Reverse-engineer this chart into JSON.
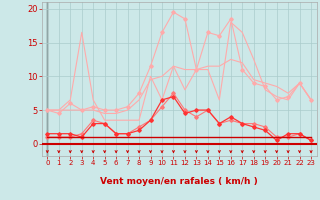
{
  "x": [
    0,
    1,
    2,
    3,
    4,
    5,
    6,
    7,
    8,
    9,
    10,
    11,
    12,
    13,
    14,
    15,
    16,
    17,
    18,
    19,
    20,
    21,
    22,
    23
  ],
  "line_rafales_max": [
    5.0,
    5.0,
    6.5,
    16.5,
    6.5,
    3.5,
    3.5,
    3.5,
    3.5,
    10.0,
    6.5,
    11.5,
    8.0,
    11.0,
    11.0,
    6.5,
    18.0,
    16.5,
    12.5,
    8.0,
    7.0,
    6.5,
    9.0,
    6.5
  ],
  "line_rafales": [
    5.0,
    4.5,
    6.0,
    5.0,
    5.5,
    5.0,
    5.0,
    5.5,
    7.5,
    11.5,
    16.5,
    19.5,
    18.5,
    11.0,
    16.5,
    16.0,
    18.5,
    11.0,
    9.0,
    8.5,
    6.5,
    7.0,
    9.0,
    6.5
  ],
  "line_moy_max": [
    5.0,
    5.0,
    5.0,
    5.0,
    5.0,
    4.5,
    4.5,
    5.0,
    6.5,
    9.5,
    10.0,
    11.5,
    11.0,
    11.0,
    11.5,
    11.5,
    12.5,
    12.0,
    9.5,
    9.0,
    8.5,
    7.5,
    9.0,
    6.5
  ],
  "line_moy": [
    1.0,
    1.0,
    1.0,
    1.5,
    3.5,
    3.0,
    1.5,
    1.5,
    2.5,
    3.5,
    5.5,
    7.5,
    5.0,
    4.0,
    5.0,
    3.0,
    3.5,
    3.0,
    3.0,
    2.5,
    1.0,
    1.0,
    1.5,
    0.5
  ],
  "line_inst": [
    1.5,
    1.5,
    1.5,
    1.0,
    3.0,
    3.0,
    1.5,
    1.5,
    2.0,
    3.5,
    6.5,
    7.0,
    4.5,
    5.0,
    5.0,
    3.0,
    4.0,
    3.0,
    2.5,
    2.0,
    0.5,
    1.5,
    1.5,
    0.5
  ],
  "line_base": [
    1.0,
    1.0,
    1.0,
    1.0,
    1.0,
    1.0,
    1.0,
    1.0,
    1.0,
    1.0,
    1.0,
    1.0,
    1.0,
    1.0,
    1.0,
    1.0,
    1.0,
    1.0,
    1.0,
    1.0,
    1.0,
    1.0,
    1.0,
    1.0
  ],
  "line_zero": [
    0.0,
    0.0,
    0.0,
    0.0,
    0.0,
    0.0,
    0.0,
    0.0,
    0.0,
    0.0,
    0.0,
    0.0,
    0.0,
    0.0,
    0.0,
    0.0,
    0.0,
    0.0,
    0.0,
    0.0,
    0.0,
    0.0,
    0.0,
    0.0
  ],
  "bg_color": "#cce8e8",
  "grid_color": "#aacccc",
  "color_light": "#ffaaaa",
  "color_mid": "#ff7777",
  "color_dark": "#ff3333",
  "color_darkest": "#cc0000",
  "xlabel": "Vent moyen/en rafales ( km/h )",
  "yticks": [
    0,
    5,
    10,
    15,
    20
  ],
  "ylim": [
    -1.8,
    21.0
  ],
  "xlim": [
    -0.5,
    23.5
  ]
}
